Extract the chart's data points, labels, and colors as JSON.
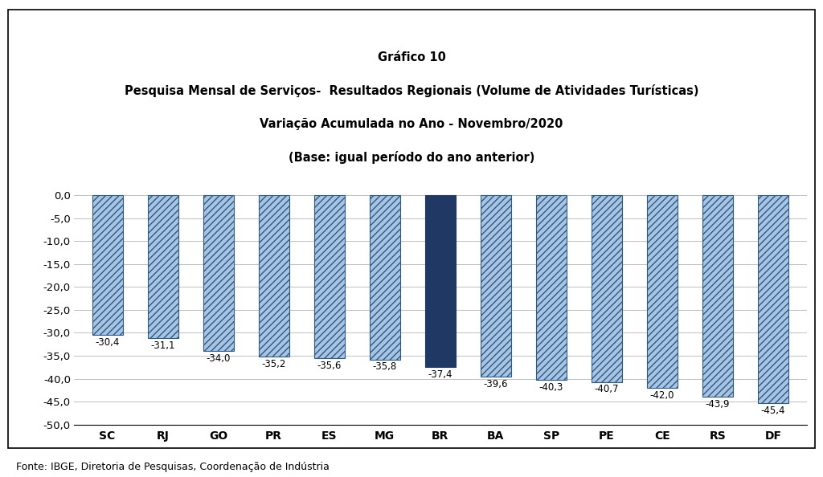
{
  "title_line1": "Gráfico 10",
  "title_line2": "Pesquisa Mensal de Serviços-  Resultados Regionais (Volume de Atividades Turísticas)",
  "title_line3": "Variação Acumulada no Ano - Novembro/2020",
  "title_line4": "(Base: igual período do ano anterior)",
  "categories": [
    "SC",
    "RJ",
    "GO",
    "PR",
    "ES",
    "MG",
    "BR",
    "BA",
    "SP",
    "PE",
    "CE",
    "RS",
    "DF"
  ],
  "values": [
    -30.4,
    -31.1,
    -34.0,
    -35.2,
    -35.6,
    -35.8,
    -37.4,
    -39.6,
    -40.3,
    -40.7,
    -42.0,
    -43.9,
    -45.4
  ],
  "bar_color_default": "#a8c4e0",
  "bar_color_highlight": "#1f3864",
  "highlight_index": 6,
  "hatch_pattern": "////",
  "ylim": [
    -50,
    2
  ],
  "yticks": [
    0,
    -5,
    -10,
    -15,
    -20,
    -25,
    -30,
    -35,
    -40,
    -45,
    -50
  ],
  "footer": "Fonte: IBGE, Diretoria de Pesquisas, Coordenação de Indústria",
  "label_fontsize": 8.5,
  "title_fontsize": 10.5,
  "background_color": "#ffffff",
  "grid_color": "#c0c0c0",
  "bar_edge_color": "#2a5a8a",
  "hatch_color": "#2a5a8a"
}
